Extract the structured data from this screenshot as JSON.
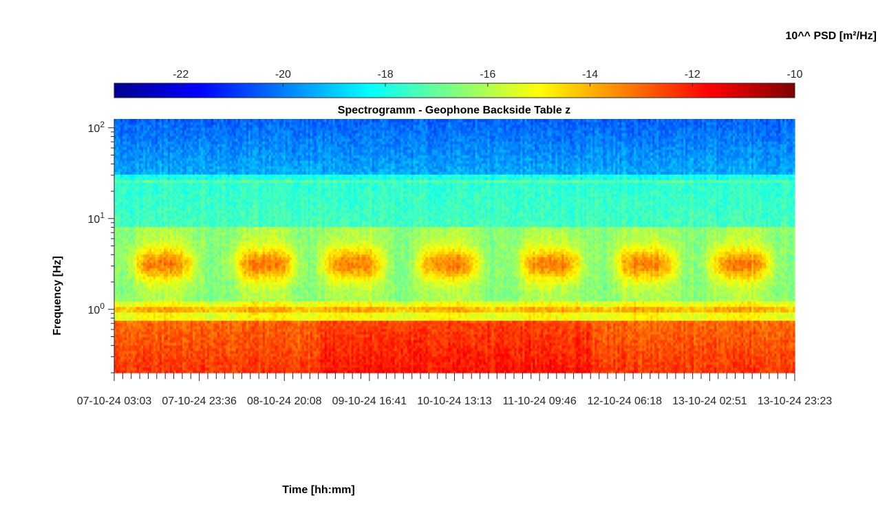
{
  "chart_data": {
    "type": "heatmap",
    "title": "Spectrogramm - Geophone Backside Table z",
    "xlabel": "Time [hh:mm]",
    "ylabel": "Frequency [Hz]",
    "x_tick_labels": [
      "07-10-24  03:03",
      "07-10-24  23:36",
      "08-10-24  20:08",
      "09-10-24  16:41",
      "10-10-24  13:13",
      "11-10-24  09:46",
      "12-10-24  06:18",
      "13-10-24  02:51",
      "13-10-24  23:23"
    ],
    "y_scale": "log",
    "y_ticks": [
      {
        "value": 1,
        "base": "10",
        "exp": "0"
      },
      {
        "value": 10,
        "base": "10",
        "exp": "1"
      },
      {
        "value": 100,
        "base": "10",
        "exp": "2"
      }
    ],
    "ylim": [
      0.2,
      125
    ],
    "colorbar": {
      "label": "10^^ PSD [m²/Hz]",
      "ticks": [
        -22,
        -20,
        -18,
        -16,
        -14,
        -12,
        -10
      ],
      "clim": [
        -23.3,
        -10
      ],
      "colormap": "jet"
    },
    "features": [
      {
        "desc": "high-frequency band",
        "freq_range_hz": [
          30,
          125
        ],
        "log_psd": -20
      },
      {
        "desc": "mid band",
        "freq_range_hz": [
          8,
          30
        ],
        "log_psd": -17.7
      },
      {
        "desc": "daily activity bursts",
        "freq_range_hz": [
          2,
          6
        ],
        "log_psd": -14
      },
      {
        "desc": "1 Hz line",
        "freq_hz": 1,
        "log_psd": -14.3
      },
      {
        "desc": "low-frequency band",
        "freq_range_hz": [
          0.2,
          0.7
        ],
        "log_psd": -12.3
      }
    ]
  }
}
